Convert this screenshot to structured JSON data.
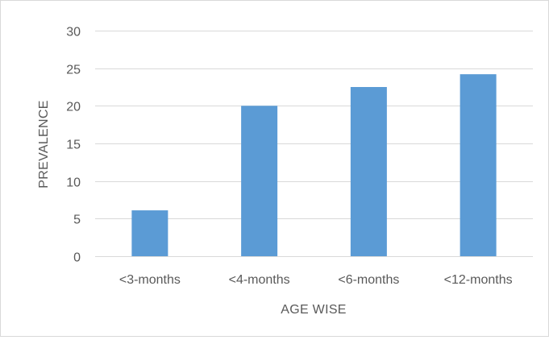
{
  "chart_data": {
    "type": "bar",
    "categories": [
      "<3-months",
      "<4-months",
      "<6-months",
      "<12-months"
    ],
    "values": [
      6.1,
      20.0,
      22.5,
      24.2
    ],
    "xlabel": "AGE WISE",
    "ylabel": "PREVALENCE",
    "ylim": [
      0,
      30
    ],
    "yticks": [
      0,
      5,
      10,
      15,
      20,
      25,
      30
    ],
    "grid": true,
    "bar_color": "#5b9bd5",
    "grid_color": "#d9d9d9"
  }
}
